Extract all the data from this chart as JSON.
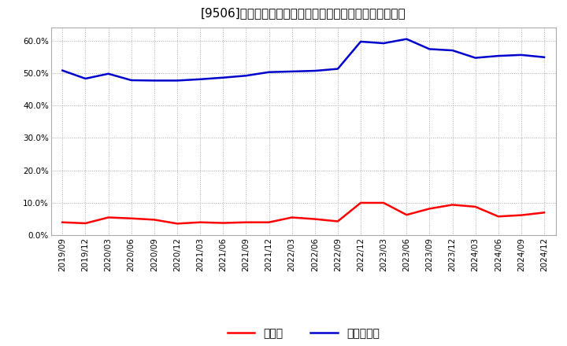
{
  "title": "[9506]　現預金、有利子負債の総資産に対する比率の推移",
  "x_labels": [
    "2019/09",
    "2019/12",
    "2020/03",
    "2020/06",
    "2020/09",
    "2020/12",
    "2021/03",
    "2021/06",
    "2021/09",
    "2021/12",
    "2022/03",
    "2022/06",
    "2022/09",
    "2022/12",
    "2023/03",
    "2023/06",
    "2023/09",
    "2023/12",
    "2024/03",
    "2024/06",
    "2024/09",
    "2024/12"
  ],
  "cash": [
    0.04,
    0.037,
    0.055,
    0.052,
    0.048,
    0.036,
    0.04,
    0.038,
    0.04,
    0.04,
    0.055,
    0.05,
    0.043,
    0.1,
    0.1,
    0.063,
    0.082,
    0.094,
    0.088,
    0.058,
    0.062,
    0.07
  ],
  "debt": [
    0.508,
    0.483,
    0.498,
    0.478,
    0.477,
    0.477,
    0.481,
    0.486,
    0.492,
    0.503,
    0.505,
    0.507,
    0.513,
    0.597,
    0.592,
    0.605,
    0.574,
    0.57,
    0.547,
    0.553,
    0.556,
    0.549
  ],
  "cash_color": "#ff0000",
  "debt_color": "#0000cd",
  "background_color": "#ffffff",
  "plot_bg_color": "#ffffff",
  "grid_color": "#aaaaaa",
  "legend_cash": "現預金",
  "legend_debt": "有利子負債",
  "ylim": [
    0.0,
    0.64
  ],
  "yticks": [
    0.0,
    0.1,
    0.2,
    0.3,
    0.4,
    0.5,
    0.6
  ],
  "title_fontsize": 11,
  "tick_fontsize": 7.5,
  "legend_fontsize": 10,
  "line_width": 1.8
}
